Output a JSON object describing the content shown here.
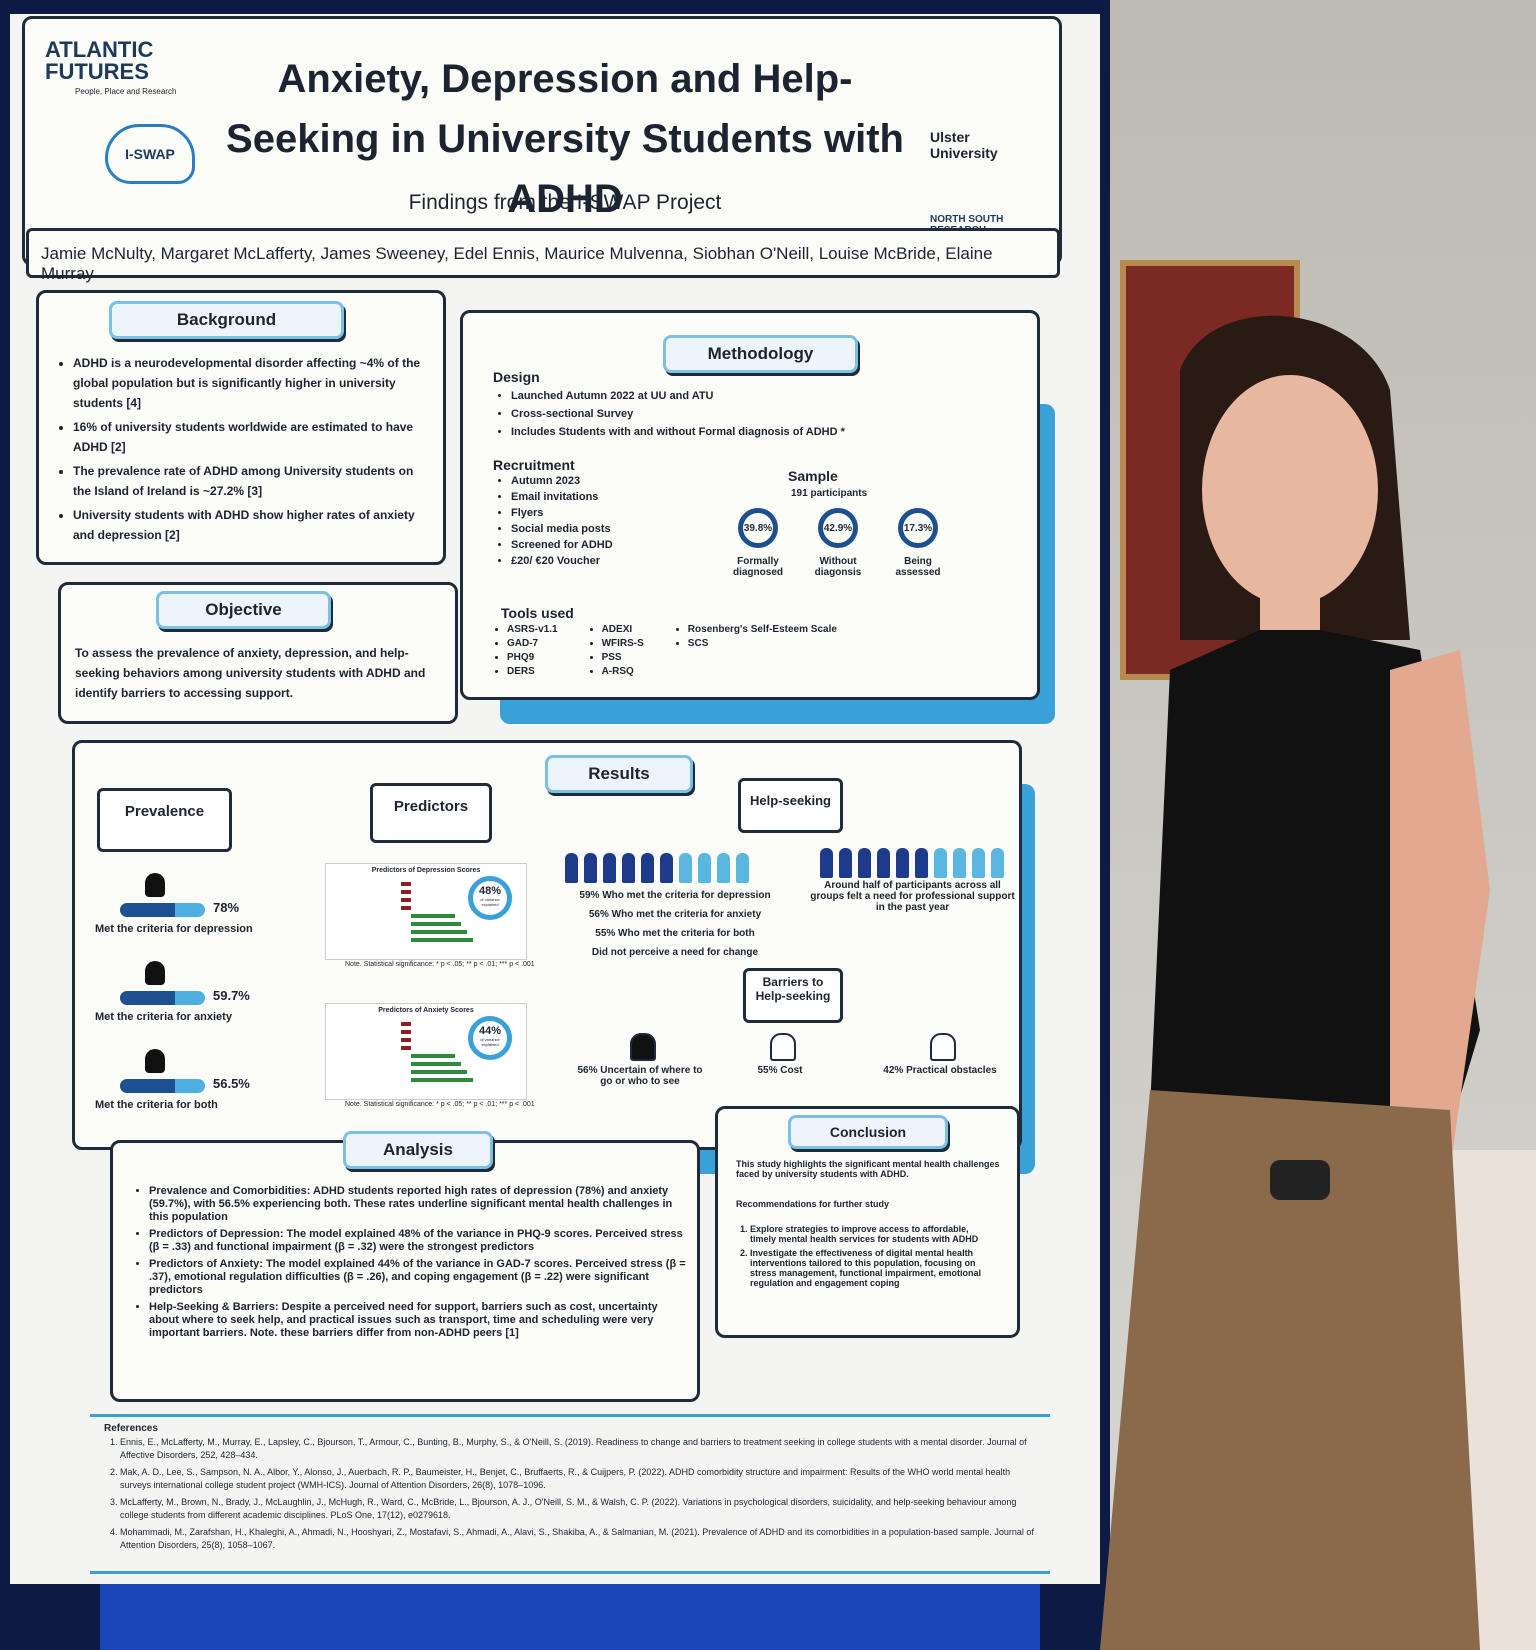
{
  "header": {
    "logo_atlantic": "ATLANTIC FUTURES",
    "logo_atlantic_tagline": "People, Place and Research",
    "logo_iswap": "I-SWAP",
    "title": "Anxiety, Depression and Help-Seeking in University Students with ADHD",
    "subtitle": "Findings from the I-SWAP Project",
    "logo_ulster": "Ulster University",
    "logo_nsrp": "NORTH SOUTH RESEARCH PROGRAMME"
  },
  "authors": "Jamie McNulty, Margaret McLafferty, James Sweeney, Edel Ennis, Maurice Mulvenna, Siobhan O'Neill, Louise McBride, Elaine Murray",
  "background": {
    "heading": "Background",
    "items": [
      "ADHD is a neurodevelopmental disorder affecting ~4% of the global population but is significantly higher in university students [4]",
      "16% of university students worldwide are estimated to have ADHD [2]",
      "The prevalence rate of ADHD among University students on the Island of Ireland is ~27.2% [3]",
      "University students with ADHD show higher rates of anxiety and depression [2]"
    ]
  },
  "objective": {
    "heading": "Objective",
    "text": "To assess the prevalence of anxiety, depression, and help-seeking behaviors among university students with ADHD and identify barriers to accessing support."
  },
  "methodology": {
    "heading": "Methodology",
    "design": {
      "heading": "Design",
      "items": [
        "Launched Autumn 2022 at UU and ATU",
        "Cross-sectional Survey",
        "Includes Students with and without Formal diagnosis of ADHD *"
      ]
    },
    "recruitment": {
      "heading": "Recruitment",
      "items": [
        "Autumn 2023",
        "Email invitations",
        "Flyers",
        "Social media posts",
        "Screened for ADHD",
        "£20/ €20  Voucher"
      ]
    },
    "sample": {
      "heading": "Sample",
      "participants": "191 participants",
      "groups": [
        {
          "value": "39.8%",
          "label": "Formally diagnosed"
        },
        {
          "value": "42.9%",
          "label": "Without diagonsis"
        },
        {
          "value": "17.3%",
          "label": "Being assessed"
        }
      ]
    },
    "tools": {
      "heading": "Tools used",
      "columns": [
        [
          "ASRS-v1.1",
          "GAD-7",
          "PHQ9",
          "DERS"
        ],
        [
          "ADEXI",
          "WFIRS-S",
          "PSS",
          "A-RSQ"
        ],
        [
          "Rosenberg's Self-Esteem Scale",
          "SCS"
        ]
      ]
    }
  },
  "results": {
    "heading": "Results",
    "prevalence": {
      "heading": "Prevalence",
      "items": [
        {
          "value": "78%",
          "label": "Met the criteria for depression"
        },
        {
          "value": "59.7%",
          "label": "Met the criteria for anxiety"
        },
        {
          "value": "56.5%",
          "label": "Met the criteria for both"
        }
      ]
    },
    "predictors": {
      "heading": "Predictors",
      "charts": [
        {
          "title": "Predictors of Depression Scores",
          "value": "48%",
          "caption": "of variance explained",
          "note": "Note. Statistical significance: * p < .05; ** p < .01; *** p < .001"
        },
        {
          "title": "Predictors of Anxiety Scores",
          "value": "44%",
          "caption": "of variance explained",
          "note": "Note. Statistical significance: * p < .05; ** p < .01; *** p < .001"
        }
      ]
    },
    "help_seeking": {
      "heading": "Help-seeking",
      "lines": [
        "59% Who met the criteria for depression",
        "56% Who met the criteria for anxiety",
        "55% Who met the criteria for both",
        "Did not perceive a need for change"
      ],
      "professional": "Around half of participants across all groups felt a need for professional support in the past year"
    },
    "barriers": {
      "heading": "Barriers to Help-seeking",
      "items": [
        "56% Uncertain of where to go or who to see",
        "55% Cost",
        "42% Practical obstacles"
      ]
    }
  },
  "analysis": {
    "heading": "Analysis",
    "items": [
      "Prevalence and Comorbidities: ADHD students reported high rates of depression (78%) and anxiety (59.7%), with 56.5% experiencing both. These rates underline significant mental health challenges in this population",
      "Predictors of Depression: The model explained 48% of the variance in PHQ-9 scores. Perceived stress (β = .33) and functional impairment (β = .32) were the strongest predictors",
      "Predictors of Anxiety: The model explained 44% of the variance in GAD-7 scores. Perceived stress (β = .37), emotional regulation difficulties (β = .26), and coping engagement (β = .22) were significant predictors",
      "Help-Seeking & Barriers: Despite a perceived need for support, barriers such as cost, uncertainty about where to seek help, and practical issues such as transport, time and scheduling were very important barriers. Note. these barriers differ from non-ADHD peers [1]"
    ]
  },
  "conclusion": {
    "heading": "Conclusion",
    "intro": "This study highlights the significant mental health challenges faced by university students with ADHD.",
    "recommendations_heading": "Recommendations for further study",
    "items": [
      "Explore strategies to improve access to affordable, timely mental health services for students with ADHD",
      "Investigate the effectiveness of digital mental health interventions tailored to this population, focusing on stress management, functional impairment, emotional regulation and engagement coping"
    ]
  },
  "references": {
    "heading": "References",
    "items": [
      "Ennis, E., McLafferty, M., Murray, E., Lapsley, C., Bjourson, T., Armour, C., Bunting, B., Murphy, S., & O'Neill, S. (2019). Readiness to change and barriers to treatment seeking in college students with a mental disorder. Journal of Affective Disorders, 252, 428–434.",
      "Mak, A. D., Lee, S., Sampson, N. A., Albor, Y., Alonso, J., Auerbach, R. P., Baumeister, H., Benjet, C., Bruffaerts, R., & Cuijpers, P. (2022). ADHD comorbidity structure and impairment: Results of the WHO world mental health surveys international college student project (WMH-ICS). Journal of Attention Disorders, 26(8), 1078–1096.",
      "McLafferty, M., Brown, N., Brady, J., McLaughlin, J., McHugh, R., Ward, C., McBride, L., Bjourson, A. J., O'Neill, S. M., & Walsh, C. P. (2022). Variations in psychological disorders, suicidality, and help-seeking behaviour among college students from different academic disciplines. PLoS One, 17(12), e0279618.",
      "Mohammadi, M., Zarafshan, H., Khaleghi, A., Ahmadi, N., Hooshyari, Z., Mostafavi, S., Ahmadi, A., Alavi, S., Shakiba, A., & Salmanian, M. (2021). Prevalence of ADHD and its comorbidities in a population-based sample. Journal of Attention Disorders, 25(8), 1058–1067."
    ]
  }
}
